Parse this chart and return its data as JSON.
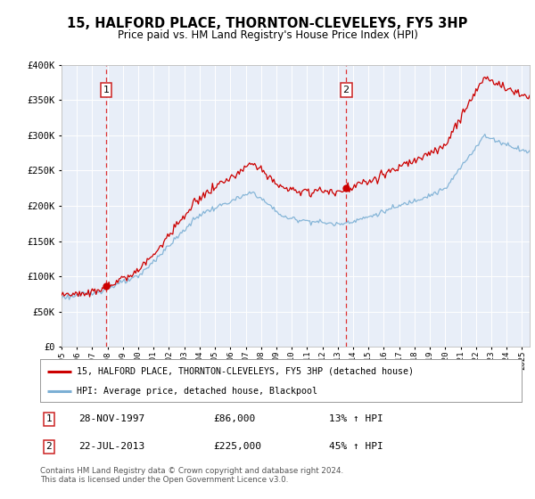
{
  "title": "15, HALFORD PLACE, THORNTON-CLEVELEYS, FY5 3HP",
  "subtitle": "Price paid vs. HM Land Registry's House Price Index (HPI)",
  "legend_line1": "15, HALFORD PLACE, THORNTON-CLEVELEYS, FY5 3HP (detached house)",
  "legend_line2": "HPI: Average price, detached house, Blackpool",
  "sale1_date": "28-NOV-1997",
  "sale1_price": "£86,000",
  "sale1_hpi": "13% ↑ HPI",
  "sale2_date": "22-JUL-2013",
  "sale2_price": "£225,000",
  "sale2_hpi": "45% ↑ HPI",
  "footnote": "Contains HM Land Registry data © Crown copyright and database right 2024.\nThis data is licensed under the Open Government Licence v3.0.",
  "hpi_line_color": "#7bafd4",
  "price_line_color": "#cc0000",
  "sale_dot_color": "#cc0000",
  "vline_color": "#dd3333",
  "plot_bg_color": "#e8eef8",
  "ylim": [
    0,
    400000
  ],
  "xlim_start": 1995.0,
  "xlim_end": 2025.5,
  "sale1_x": 1997.917,
  "sale2_x": 2013.542
}
